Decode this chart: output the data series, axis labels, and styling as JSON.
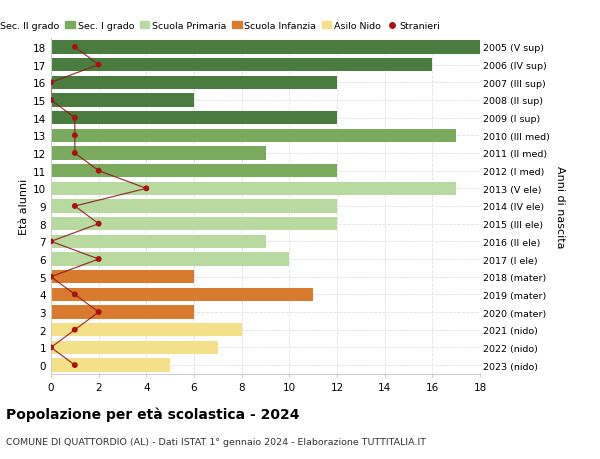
{
  "ages": [
    18,
    17,
    16,
    15,
    14,
    13,
    12,
    11,
    10,
    9,
    8,
    7,
    6,
    5,
    4,
    3,
    2,
    1,
    0
  ],
  "right_labels": [
    "2005 (V sup)",
    "2006 (IV sup)",
    "2007 (III sup)",
    "2008 (II sup)",
    "2009 (I sup)",
    "2010 (III med)",
    "2011 (II med)",
    "2012 (I med)",
    "2013 (V ele)",
    "2014 (IV ele)",
    "2015 (III ele)",
    "2016 (II ele)",
    "2017 (I ele)",
    "2018 (mater)",
    "2019 (mater)",
    "2020 (mater)",
    "2021 (nido)",
    "2022 (nido)",
    "2023 (nido)"
  ],
  "bar_values": [
    18,
    16,
    12,
    6,
    12,
    17,
    9,
    12,
    17,
    12,
    12,
    9,
    10,
    6,
    11,
    6,
    8,
    7,
    5
  ],
  "bar_colors": [
    "#4a7c3f",
    "#4a7c3f",
    "#4a7c3f",
    "#4a7c3f",
    "#4a7c3f",
    "#7aaa5e",
    "#7aaa5e",
    "#7aaa5e",
    "#b8d9a0",
    "#b8d9a0",
    "#b8d9a0",
    "#b8d9a0",
    "#b8d9a0",
    "#d97b2e",
    "#d97b2e",
    "#d97b2e",
    "#f5e08a",
    "#f5e08a",
    "#f5e08a"
  ],
  "stranieri_values": [
    1,
    2,
    0,
    0,
    1,
    1,
    1,
    2,
    4,
    1,
    2,
    0,
    2,
    0,
    1,
    2,
    1,
    0,
    1
  ],
  "legend_labels": [
    "Sec. II grado",
    "Sec. I grado",
    "Scuola Primaria",
    "Scuola Infanzia",
    "Asilo Nido",
    "Stranieri"
  ],
  "legend_colors": [
    "#4a7c3f",
    "#7aaa5e",
    "#b8d9a0",
    "#d97b2e",
    "#f5e08a",
    "#aa1111"
  ],
  "title": "Popolazione per età scolastica - 2024",
  "subtitle": "COMUNE DI QUATTORDIO (AL) - Dati ISTAT 1° gennaio 2024 - Elaborazione TUTTITALIA.IT",
  "ylabel_left": "Età alunni",
  "ylabel_right": "Anni di nascita",
  "xlim": [
    0,
    18
  ],
  "ylim": [
    -0.5,
    18.5
  ],
  "xticks": [
    0,
    2,
    4,
    6,
    8,
    10,
    12,
    14,
    16,
    18
  ],
  "grid_color": "#e0e0e0",
  "bar_height": 0.75
}
